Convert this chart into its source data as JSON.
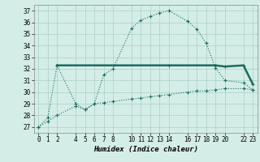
{
  "xlabel": "Humidex (Indice chaleur)",
  "bg_color": "#d4ede7",
  "grid_color": "#aacfc7",
  "line_color": "#1a6b5e",
  "xlim": [
    -0.5,
    23.5
  ],
  "ylim": [
    26.5,
    37.5
  ],
  "yticks": [
    27,
    28,
    29,
    30,
    31,
    32,
    33,
    34,
    35,
    36,
    37
  ],
  "xticks": [
    0,
    1,
    2,
    4,
    5,
    6,
    7,
    8,
    10,
    11,
    12,
    13,
    14,
    16,
    17,
    18,
    19,
    20,
    22,
    23
  ],
  "line1_x": [
    0,
    1,
    2,
    4,
    5,
    6,
    7,
    8,
    10,
    11,
    12,
    13,
    14,
    16,
    17,
    18,
    19,
    20,
    22,
    23
  ],
  "line1_y": [
    27.0,
    27.8,
    32.3,
    29.0,
    28.5,
    29.0,
    31.5,
    32.0,
    35.5,
    36.2,
    36.5,
    36.8,
    37.0,
    36.1,
    35.4,
    34.2,
    32.1,
    31.0,
    30.8,
    30.2
  ],
  "line2_x": [
    2,
    14,
    19,
    20,
    22,
    23
  ],
  "line2_y": [
    32.3,
    32.3,
    32.3,
    32.2,
    32.3,
    30.7
  ],
  "line3_x": [
    0,
    1,
    2,
    4,
    5,
    6,
    7,
    8,
    10,
    11,
    12,
    13,
    14,
    16,
    17,
    18,
    19,
    20,
    22,
    23
  ],
  "line3_y": [
    27.0,
    27.5,
    28.0,
    28.8,
    28.5,
    29.0,
    29.1,
    29.2,
    29.4,
    29.5,
    29.6,
    29.7,
    29.8,
    30.0,
    30.1,
    30.1,
    30.2,
    30.3,
    30.3,
    30.2
  ]
}
